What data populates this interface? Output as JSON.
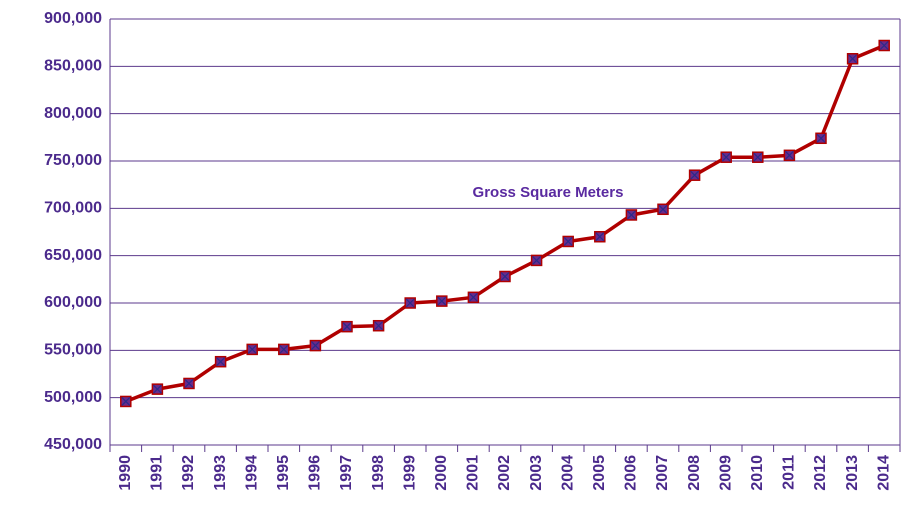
{
  "chart_data": {
    "type": "line",
    "annotation": "Gross Square Meters",
    "categories": [
      "1990",
      "1991",
      "1992",
      "1993",
      "1994",
      "1995",
      "1996",
      "1997",
      "1998",
      "1999",
      "2000",
      "2001",
      "2002",
      "2003",
      "2004",
      "2005",
      "2006",
      "2007",
      "2008",
      "2009",
      "2010",
      "2011",
      "2012",
      "2013",
      "2014"
    ],
    "values": [
      496000,
      509000,
      515000,
      538000,
      551000,
      551000,
      555000,
      575000,
      576000,
      600000,
      602000,
      606000,
      628000,
      645000,
      665000,
      670000,
      693000,
      699000,
      735000,
      754000,
      754000,
      756000,
      774000,
      858000,
      872000
    ],
    "color": "#b00000",
    "marker_color": "#6a2a8a",
    "ylim": [
      450000,
      900000
    ],
    "yticks": [
      {
        "value": 450000,
        "label": "450,000"
      },
      {
        "value": 500000,
        "label": "500,000"
      },
      {
        "value": 550000,
        "label": "550,000"
      },
      {
        "value": 600000,
        "label": "600,000"
      },
      {
        "value": 650000,
        "label": "650,000"
      },
      {
        "value": 700000,
        "label": "700,000"
      },
      {
        "value": 750000,
        "label": "750,000"
      },
      {
        "value": 800000,
        "label": "800,000"
      },
      {
        "value": 850000,
        "label": "850,000"
      },
      {
        "value": 900000,
        "label": "900,000"
      }
    ],
    "grid": true
  }
}
